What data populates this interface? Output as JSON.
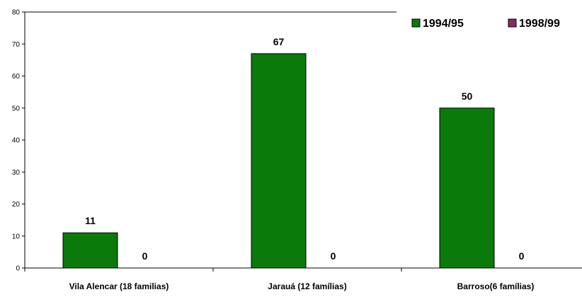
{
  "chart_data": {
    "type": "bar",
    "categories": [
      "Vila Alencar (18 familias)",
      "Jarauá (12 famílias)",
      "Barroso(6 famílias)"
    ],
    "series": [
      {
        "name": "1994/95",
        "values": [
          11,
          67,
          50
        ],
        "color": "#0a7a0a"
      },
      {
        "name": "1998/99",
        "values": [
          0,
          0,
          0
        ],
        "color": "#8b2a5c"
      }
    ],
    "ylim": [
      0,
      80
    ],
    "yticks": [
      0,
      10,
      20,
      30,
      40,
      50,
      60,
      70,
      80
    ],
    "data_labels": true,
    "grid": false,
    "legend_position": "top-right"
  }
}
